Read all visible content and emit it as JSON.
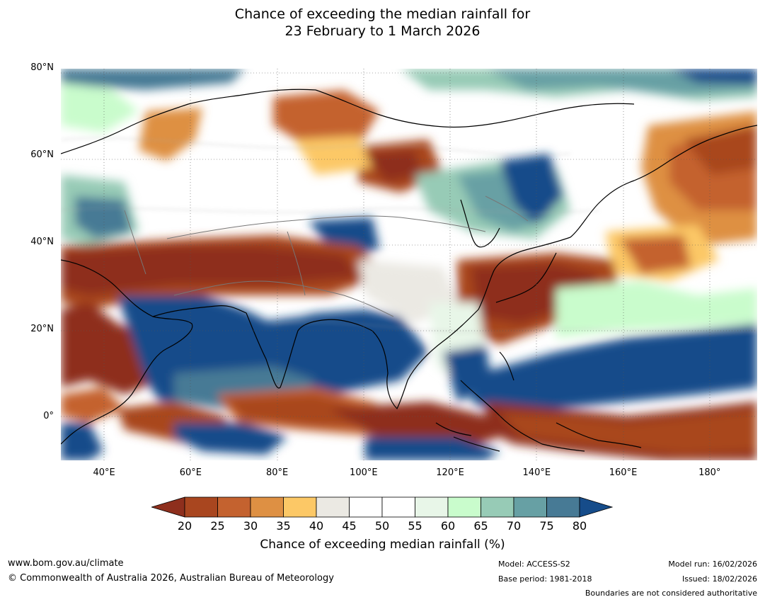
{
  "title": {
    "line1": "Chance of exceeding the median rainfall for",
    "line2": "23 February to 1 March 2026"
  },
  "map": {
    "lon_range": [
      30,
      191
    ],
    "lat_range": [
      -10,
      80
    ],
    "lat_ticks": [
      "80°N",
      "60°N",
      "40°N",
      "20°N",
      "0°"
    ],
    "lon_ticks": [
      "40°E",
      "60°E",
      "80°E",
      "100°E",
      "120°E",
      "140°E",
      "160°E",
      "180°"
    ],
    "lat_tick_values": [
      80,
      60,
      40,
      20,
      0
    ],
    "lon_tick_values": [
      40,
      60,
      80,
      100,
      120,
      140,
      160,
      180
    ]
  },
  "colorbar": {
    "title": "Chance of exceeding median rainfall (%)",
    "ticks": [
      "20",
      "25",
      "30",
      "35",
      "40",
      "45",
      "50",
      "55",
      "60",
      "65",
      "70",
      "75",
      "80"
    ],
    "colors": [
      "#8e2f1d",
      "#a9461f",
      "#c4622f",
      "#de9043",
      "#fcc866",
      "#ebe9e3",
      "#ffffff",
      "#ffffff",
      "#e8f6e8",
      "#c9fccc",
      "#97cbb6",
      "#67a0a4",
      "#477a95",
      "#164c8a"
    ]
  },
  "footer": {
    "url": "www.bom.gov.au/climate",
    "copyright": "© Commonwealth of Australia 2026, Australian Bureau of Meteorology",
    "model": "Model: ACCESS-S2",
    "base_period": "Base period: 1981-2018",
    "model_run": "Model run: 16/02/2026",
    "issued": "Issued: 18/02/2026",
    "disclaimer": "Boundaries are not considered authoritative"
  }
}
